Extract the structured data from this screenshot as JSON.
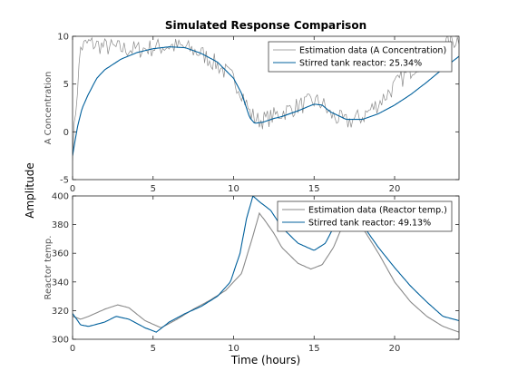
{
  "figure": {
    "title": "Simulated Response Comparison",
    "shared_ylabel": "Amplitude",
    "shared_xlabel": "Time (hours)"
  },
  "colors": {
    "estimation": "#8a8a8a",
    "model": "#00609c",
    "axes": "#262626"
  },
  "chart_data": [
    {
      "type": "line",
      "ylabel": "A Concentration",
      "xlim": [
        0,
        24
      ],
      "ylim": [
        -5,
        10
      ],
      "xticks": [
        0,
        5,
        10,
        15,
        20
      ],
      "yticks": [
        -5,
        0,
        5,
        10
      ],
      "grid": false,
      "legend_position": "top-right",
      "series": [
        {
          "name": "Estimation data (A Concentration)",
          "color": "#8a8a8a",
          "noisy": true,
          "x": [
            0,
            0.5,
            1,
            2,
            3,
            4,
            5,
            6,
            7,
            8,
            9,
            10,
            10.5,
            11,
            11.5,
            12,
            13,
            14,
            15,
            15.5,
            16,
            17,
            18,
            19,
            20,
            21,
            22,
            23,
            24
          ],
          "y": [
            -2,
            8.8,
            9.3,
            8.9,
            8.7,
            8.6,
            8.8,
            9.0,
            8.8,
            8.2,
            7.0,
            5.5,
            4.2,
            2.0,
            1.2,
            1.3,
            2.0,
            2.7,
            3.2,
            3.0,
            1.8,
            1.0,
            1.6,
            3.0,
            4.8,
            6.5,
            8.0,
            9.0,
            9.8
          ]
        },
        {
          "name": "Stirred tank reactor: 25.34%",
          "color": "#00609c",
          "noisy": false,
          "x": [
            0,
            0.3,
            0.6,
            1,
            1.5,
            2,
            3,
            4,
            5,
            6,
            7,
            8,
            9,
            10,
            10.5,
            11,
            11.3,
            11.8,
            12.5,
            13,
            14,
            15,
            15.5,
            16,
            17,
            18,
            19,
            20,
            21,
            22,
            23,
            24
          ],
          "y": [
            -2.5,
            0.5,
            2.5,
            4.0,
            5.6,
            6.5,
            7.6,
            8.3,
            8.7,
            8.9,
            8.8,
            8.2,
            7.3,
            5.6,
            4.0,
            1.5,
            0.9,
            1.0,
            1.4,
            1.6,
            2.2,
            2.9,
            2.8,
            2.1,
            1.3,
            1.3,
            1.9,
            2.8,
            3.9,
            5.2,
            6.6,
            7.9
          ]
        }
      ]
    },
    {
      "type": "line",
      "ylabel": "Reactor temp.",
      "xlim": [
        0,
        24
      ],
      "ylim": [
        300,
        400
      ],
      "xticks": [
        0,
        5,
        10,
        15,
        20
      ],
      "yticks": [
        300,
        320,
        340,
        360,
        380,
        400
      ],
      "grid": false,
      "legend_position": "top-right",
      "series": [
        {
          "name": "Estimation data (Reactor temp.)",
          "color": "#8a8a8a",
          "noisy": false,
          "x": [
            0,
            0.5,
            1,
            2,
            2.8,
            3.5,
            4.5,
            5.5,
            6.5,
            7.5,
            8.5,
            9.5,
            10.5,
            11.2,
            11.6,
            12,
            12.5,
            13,
            14,
            14.8,
            15.5,
            16.2,
            16.8,
            17.3,
            18,
            19,
            20,
            21,
            22,
            23,
            24
          ],
          "y": [
            316,
            314,
            316,
            321,
            324,
            322,
            313,
            308,
            314,
            321,
            327,
            334,
            346,
            372,
            388,
            382,
            374,
            364,
            353,
            349,
            352,
            364,
            380,
            384,
            378,
            360,
            340,
            326,
            316,
            309,
            305
          ]
        },
        {
          "name": "Stirred tank reactor: 49.13%",
          "color": "#00609c",
          "noisy": false,
          "x": [
            0,
            0.5,
            1,
            2,
            2.7,
            3.5,
            4.5,
            5.2,
            6,
            7,
            8,
            9,
            9.8,
            10.4,
            10.8,
            11.2,
            11.6,
            12.3,
            13,
            14,
            15,
            15.7,
            16.3,
            17,
            17.5,
            18,
            19,
            20,
            21,
            22,
            23,
            24
          ],
          "y": [
            318,
            310,
            309,
            312,
            316,
            314,
            308,
            305,
            312,
            318,
            323,
            330,
            340,
            360,
            384,
            400,
            396,
            390,
            378,
            367,
            362,
            367,
            380,
            396,
            392,
            380,
            364,
            350,
            337,
            326,
            316,
            313
          ]
        }
      ]
    }
  ]
}
